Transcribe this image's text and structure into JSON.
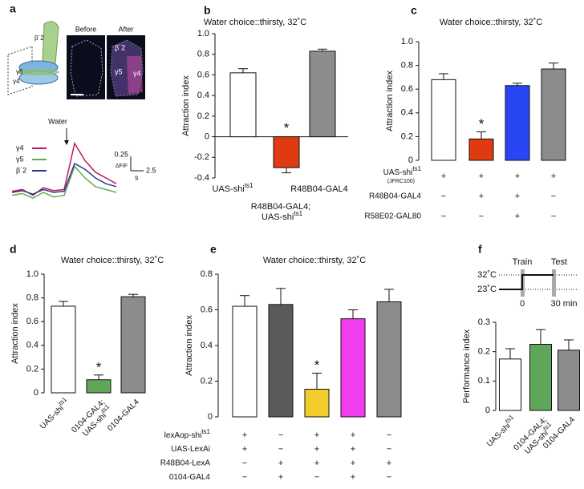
{
  "panel_a": {
    "panel": "a",
    "sketch_labels": [
      "β´2",
      "γ5",
      "γ4"
    ],
    "image_titles": [
      "Before",
      "After"
    ],
    "image_labels": [
      "β´2",
      "γ5",
      "γ4"
    ],
    "stimulus": "Water",
    "x": [
      0,
      2,
      4,
      6,
      8,
      10,
      12,
      14,
      16,
      18,
      20
    ],
    "series": [
      {
        "name": "γ4",
        "color": "#c2185b",
        "values": [
          0.02,
          0.05,
          -0.05,
          0.08,
          0.03,
          0.05,
          0.85,
          0.55,
          0.35,
          0.25,
          0.15
        ]
      },
      {
        "name": "γ5",
        "color": "#6aa84f",
        "values": [
          -0.05,
          -0.02,
          -0.1,
          0,
          -0.08,
          -0.05,
          0.45,
          0.25,
          0.1,
          0.05,
          0
        ]
      },
      {
        "name": "β´2",
        "color": "#2b3a8c",
        "values": [
          0,
          0.03,
          -0.03,
          0.05,
          0,
          0.02,
          0.5,
          0.4,
          0.25,
          0.15,
          0.1
        ]
      }
    ],
    "scale_y": 0.25,
    "scale_y_unit": "ΔF/F",
    "scale_x": 2.5,
    "scale_x_unit": "s"
  },
  "chart_data": [
    {
      "type": "bar",
      "panel": "b",
      "title": "Water choice::thirsty, 32˚C",
      "ylabel": "Attraction index",
      "categories": [
        "UAS-shits1",
        "R48B04-GAL4; UAS-shits1",
        "R48B04-GAL4"
      ],
      "values": [
        0.62,
        -0.3,
        0.83
      ],
      "errors": [
        0.04,
        0.05,
        0.02
      ],
      "colors": [
        "#ffffff",
        "#e03a10",
        "#8c8c8c"
      ],
      "significance": [
        null,
        "*",
        null
      ],
      "ylim": [
        -0.4,
        1.0
      ],
      "yticks": [
        -0.4,
        -0.2,
        0,
        0.2,
        0.4,
        0.6,
        0.8,
        {
          "value": 1,
          "label": "1.0"
        }
      ]
    },
    {
      "type": "bar",
      "panel": "c",
      "title": "Water choice::thirsty, 32˚C",
      "ylabel": "Attraction index",
      "values": [
        0.68,
        0.18,
        0.63,
        0.77
      ],
      "errors": [
        0.05,
        0.06,
        0.02,
        0.05
      ],
      "colors": [
        "#ffffff",
        "#e03a10",
        "#2946f5",
        "#8c8c8c"
      ],
      "significance": [
        null,
        "*",
        null,
        null
      ],
      "conditions": [
        {
          "label": "UAS-shits1",
          "sublabel": "(JFRC100)",
          "signs": [
            "+",
            "+",
            "+",
            "+"
          ]
        },
        {
          "label": "R48B04-GAL4",
          "signs": [
            "−",
            "+",
            "+",
            "−"
          ]
        },
        {
          "label": "R58E02-GAL80",
          "signs": [
            "−",
            "−",
            "+",
            "−"
          ]
        }
      ],
      "ylim": [
        0,
        1.0
      ],
      "yticks": [
        0,
        0.2,
        0.4,
        0.6,
        0.8,
        {
          "value": 1,
          "label": "1.0"
        }
      ]
    },
    {
      "type": "bar",
      "panel": "d",
      "title": "Water choice::thirsty, 32˚C",
      "ylabel": "Attraction index",
      "categories": [
        "UAS-shits1",
        "0104-GAL4; UAS-shits1",
        "0104-GAL4"
      ],
      "values": [
        0.73,
        0.11,
        0.81
      ],
      "errors": [
        0.04,
        0.04,
        0.02
      ],
      "colors": [
        "#ffffff",
        "#5fa55a",
        "#8c8c8c"
      ],
      "significance": [
        null,
        "*",
        null
      ],
      "ylim": [
        0,
        1.0
      ],
      "yticks": [
        0,
        0.2,
        0.4,
        0.6,
        0.8,
        {
          "value": 1,
          "label": "1.0"
        }
      ]
    },
    {
      "type": "bar",
      "panel": "e",
      "title": "Water choice::thirsty, 32˚C",
      "ylabel": "Attraction index",
      "values": [
        0.62,
        0.63,
        0.155,
        0.55,
        0.645
      ],
      "errors": [
        0.06,
        0.09,
        0.09,
        0.05,
        0.07
      ],
      "colors": [
        "#ffffff",
        "#5a5a5a",
        "#f2cc2a",
        "#f23cf0",
        "#8c8c8c"
      ],
      "significance": [
        null,
        null,
        "*",
        null,
        null
      ],
      "conditions": [
        {
          "label": "lexAop-shits1",
          "signs": [
            "+",
            "−",
            "+",
            "+",
            "−"
          ]
        },
        {
          "label": "UAS-LexAi",
          "signs": [
            "+",
            "−",
            "+",
            "+",
            "−"
          ]
        },
        {
          "label": "R48B04-LexA",
          "signs": [
            "−",
            "+",
            "+",
            "+",
            "+"
          ]
        },
        {
          "label": "0104-GAL4",
          "signs": [
            "−",
            "+",
            "−",
            "+",
            "−"
          ]
        }
      ],
      "ylim": [
        0,
        0.8
      ],
      "yticks": [
        0,
        0.2,
        0.4,
        0.6,
        0.8
      ]
    },
    {
      "type": "bar",
      "panel": "f",
      "ylabel": "Performance index",
      "categories": [
        "UAS-shits1",
        "0104-GAL4; UAS-shits1",
        "0104-GAL4"
      ],
      "values": [
        0.175,
        0.225,
        0.205
      ],
      "errors": [
        0.035,
        0.05,
        0.035
      ],
      "colors": [
        "#ffffff",
        "#5fa55a",
        "#8c8c8c"
      ],
      "schematic": {
        "temps": [
          "32˚C",
          "23˚C"
        ],
        "events": [
          "Train",
          "Test"
        ],
        "times": [
          "0",
          "30 min"
        ]
      },
      "ylim": [
        0,
        0.3
      ],
      "yticks": [
        0,
        0.1,
        0.2,
        0.3
      ]
    }
  ]
}
